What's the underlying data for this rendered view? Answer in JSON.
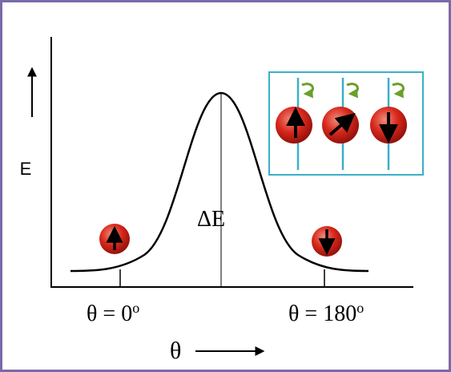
{
  "y_axis_label": "E",
  "barrier_label": "ΔE",
  "left_label": {
    "text": "θ = 0",
    "sup": "o"
  },
  "right_label": {
    "text": "θ = 180",
    "sup": "o"
  },
  "x_axis_label": "θ"
}
